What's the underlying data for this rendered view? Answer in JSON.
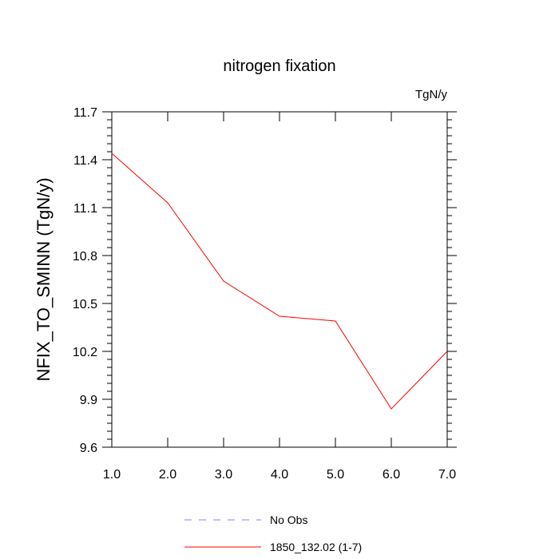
{
  "chart_data": {
    "type": "line",
    "title": "nitrogen fixation",
    "units": "TgN/y",
    "ylabel": "NFIX_TO_SMINN  (TgN/y)",
    "xlabel": "",
    "xlim": [
      1.0,
      7.0
    ],
    "ylim": [
      9.6,
      11.7
    ],
    "x_ticks": [
      "1.0",
      "2.0",
      "3.0",
      "4.0",
      "5.0",
      "6.0",
      "7.0"
    ],
    "y_ticks": [
      "9.6",
      "9.9",
      "10.2",
      "10.5",
      "10.8",
      "11.1",
      "11.4",
      "11.7"
    ],
    "series": [
      {
        "name": "1850_132.02 (1-7)",
        "color": "#ff0000",
        "x": [
          1,
          2,
          3,
          4,
          5,
          6,
          7
        ],
        "values": [
          11.44,
          11.13,
          10.64,
          10.42,
          10.39,
          9.84,
          10.2
        ]
      }
    ],
    "legend": [
      {
        "label": "No Obs",
        "color": "#8080ff",
        "style": "dashed"
      },
      {
        "label": "1850_132.02 (1-7)",
        "color": "#ff0000",
        "style": "solid"
      }
    ],
    "legend_placement": "bottom",
    "grid": false
  }
}
